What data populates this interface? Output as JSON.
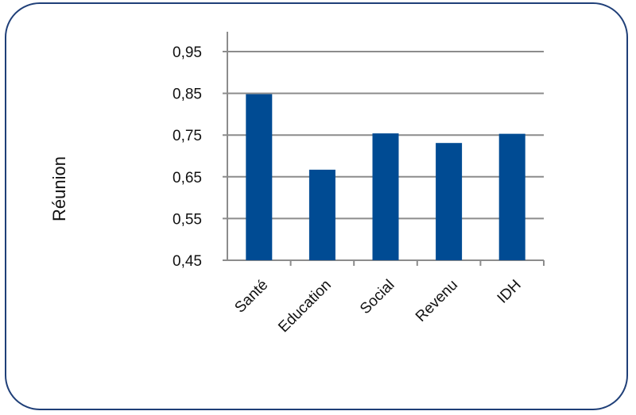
{
  "chart_data": {
    "type": "bar",
    "ylabel": "Réunion",
    "categories": [
      "Santé",
      "Education",
      "Social",
      "Revenu",
      "IDH"
    ],
    "values": [
      0.848,
      0.667,
      0.754,
      0.731,
      0.753
    ],
    "yticks": [
      "0,45",
      "0,55",
      "0,65",
      "0,75",
      "0,85",
      "0,95"
    ],
    "ylim": [
      0.45,
      0.95
    ],
    "grid": true,
    "bar_color": "#004b93",
    "grid_color": "#8c8c8c"
  }
}
